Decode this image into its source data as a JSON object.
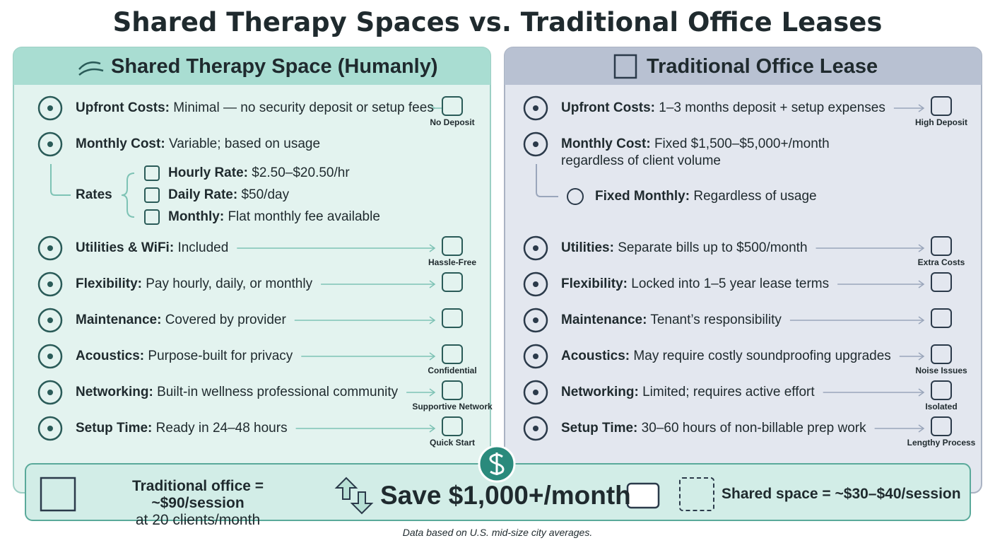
{
  "title": "Shared Therapy Spaces vs. Traditional Office Leases",
  "left": {
    "heading": "Shared Therapy Space (Humanly)",
    "rows": [
      {
        "label": "Upfront Costs:",
        "text": "Minimal — no security deposit or setup fees",
        "tag": "No Deposit"
      },
      {
        "label": "Monthly Cost:",
        "text": "Variable; based on usage"
      },
      {
        "label": "Utilities & WiFi:",
        "text": "Included",
        "tag": "Hassle-Free"
      },
      {
        "label": "Flexibility:",
        "text": "Pay hourly, daily, or monthly"
      },
      {
        "label": "Maintenance:",
        "text": "Covered by provider"
      },
      {
        "label": "Acoustics:",
        "text": "Purpose-built for privacy",
        "tag": "Confidential"
      },
      {
        "label": "Networking:",
        "text": "Built-in wellness professional community",
        "tag": "Supportive Network"
      },
      {
        "label": "Setup Time:",
        "text": "Ready in 24–48 hours",
        "tag": "Quick Start"
      }
    ],
    "rates": {
      "label": "Rates",
      "items": [
        {
          "label": "Hourly Rate:",
          "text": "$2.50–$20.50/hr"
        },
        {
          "label": "Daily Rate:",
          "text": "$50/day"
        },
        {
          "label": "Monthly:",
          "text": "Flat monthly fee available"
        }
      ]
    }
  },
  "right": {
    "heading": "Traditional Office Lease",
    "rows": [
      {
        "label": "Upfront Costs:",
        "text": "1–3 months deposit + setup expenses",
        "tag": "High Deposit"
      },
      {
        "label": "Monthly Cost:",
        "text": "Fixed $1,500–$5,000+/month regardless of client volume"
      },
      {
        "label": "Utilities:",
        "text": "Separate bills up to $500/month",
        "tag": "Extra Costs"
      },
      {
        "label": "Flexibility:",
        "text": "Locked into 1–5 year lease terms"
      },
      {
        "label": "Maintenance:",
        "text": "Tenant’s responsibility"
      },
      {
        "label": "Acoustics:",
        "text": "May require costly soundproofing upgrades",
        "tag": "Noise Issues"
      },
      {
        "label": "Networking:",
        "text": "Limited; requires active effort",
        "tag": "Isolated"
      },
      {
        "label": "Setup Time:",
        "text": "30–60 hours of non-billable prep work",
        "tag": "Lengthy Process"
      }
    ],
    "fixed": {
      "label": "Fixed Monthly:",
      "text": "Regardless of usage"
    }
  },
  "footer": {
    "left": [
      "Traditional office = ~$90/session",
      "at 20 clients/month"
    ],
    "center": "Save $1,000+/month",
    "right": "Shared space = ~$30–$40/session"
  },
  "note": "Data based on U.S. mid-size city averages."
}
